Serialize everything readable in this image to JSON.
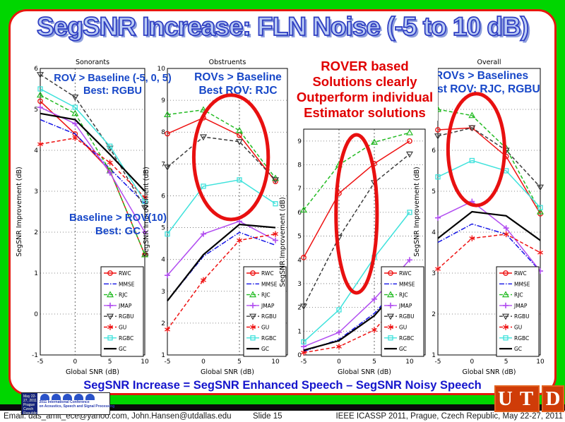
{
  "title": "SegSNR Increase: FLN Noise (-5 to 10 dB)",
  "annotations": {
    "p1_top": [
      "ROV > Baseline (-5, 0, 5)",
      "Best: RGBU"
    ],
    "p1_bottom": [
      "Baseline > ROV(10)",
      "Best: GC"
    ],
    "p2": [
      "ROVs > Baseline",
      "Best ROV: RJC"
    ],
    "p4": [
      "ROVs > Baselines",
      "Best ROV: RJC, RGBU"
    ],
    "red": [
      "ROVER based",
      "Solutions clearly",
      "Outperform individual",
      "Estimator solutions"
    ],
    "formula": "SegSNR Increase = SegSNR Enhanced Speech – SegSNR Noisy Speech"
  },
  "footer": {
    "email": "Email: das_amit_ece@yahoo.com, John.Hansen@utdallas.edu",
    "slide_number": "Slide 15",
    "conference": "IEEE ICASSP 2011, Prague, Czech Republic, May 22-27, 2011"
  },
  "logos": {
    "icassp_left": [
      "May 22-27, 2011",
      "Prague",
      "Czech Republic"
    ],
    "icassp_right": [
      "2011 International Conference",
      "on Acoustics, Speech and Signal Processing"
    ],
    "utd_u": "U",
    "utd_t": "T",
    "utd_d": "D"
  },
  "colors": {
    "background_green": "#00d600",
    "slide_border_red": "#e6180e",
    "annotation_blue": "#1747c8",
    "annotation_red": "#e00000",
    "title_fill": "#bccdf4",
    "title_stroke": "#2f3ec2"
  },
  "series_styles": {
    "RWC": {
      "color": "#ee1111",
      "dash": "none",
      "marker": "circle"
    },
    "MMSE": {
      "color": "#1414e6",
      "dash": "dashdot",
      "marker": "none"
    },
    "RJC": {
      "color": "#23bb23",
      "dash": "dash",
      "marker": "triangle-up"
    },
    "JMAP": {
      "color": "#b14df0",
      "dash": "none",
      "marker": "plus"
    },
    "RGBU": {
      "color": "#3c3c3c",
      "dash": "dash",
      "marker": "triangle-down"
    },
    "GU": {
      "color": "#ee1111",
      "dash": "dash",
      "marker": "star"
    },
    "RGBC": {
      "color": "#3fe2dc",
      "dash": "none",
      "marker": "square"
    },
    "GC": {
      "color": "#000000",
      "dash": "none",
      "marker": "none",
      "width": 2.2
    }
  },
  "chart_data": [
    {
      "type": "line",
      "title": "Sonorants",
      "xlabel": "Global SNR (dB)",
      "ylabel": "SegSNR Improvement (dB)",
      "x": [
        -5,
        0,
        5,
        10
      ],
      "xticks": [
        -5,
        0,
        5,
        10
      ],
      "ylim": [
        -1,
        6
      ],
      "yticks": [
        6,
        5,
        4,
        3,
        2,
        1,
        0,
        -1
      ],
      "vlines": [
        0
      ],
      "series": [
        {
          "name": "RWC",
          "values": [
            5.2,
            4.4,
            3.5,
            1.45
          ]
        },
        {
          "name": "MMSE",
          "values": [
            4.75,
            4.4,
            3.55,
            2.7
          ]
        },
        {
          "name": "RJC",
          "values": [
            5.35,
            4.9,
            3.5,
            1.45
          ]
        },
        {
          "name": "JMAP",
          "values": [
            5.05,
            4.65,
            3.45,
            2.0
          ]
        },
        {
          "name": "RGBU",
          "values": [
            5.85,
            5.3,
            4.05,
            2.6
          ]
        },
        {
          "name": "GU",
          "values": [
            4.15,
            4.3,
            3.7,
            2.85
          ]
        },
        {
          "name": "RGBC",
          "values": [
            5.5,
            5.05,
            4.1,
            2.75
          ]
        },
        {
          "name": "GC",
          "values": [
            4.9,
            4.75,
            3.9,
            3.0
          ]
        }
      ]
    },
    {
      "type": "line",
      "title": "Obstruents",
      "xlabel": "Global SNR (dB)",
      "ylabel": "SegSNR Improvement (dB)",
      "x": [
        -5,
        0,
        5,
        10
      ],
      "xticks": [
        -5,
        0,
        5,
        10
      ],
      "ylim": [
        1,
        10
      ],
      "yticks": [
        10,
        9,
        8,
        7,
        6,
        5,
        4,
        3,
        2,
        1
      ],
      "vlines": [
        5
      ],
      "highlight_ellipse": {
        "fx": 0.53,
        "fy": 0.31,
        "frx": 0.31,
        "fry": 0.217
      },
      "series": [
        {
          "name": "RWC",
          "values": [
            7.95,
            8.45,
            7.9,
            6.45
          ]
        },
        {
          "name": "MMSE",
          "values": [
            2.7,
            4.1,
            4.85,
            4.45
          ]
        },
        {
          "name": "RJC",
          "values": [
            8.55,
            8.7,
            8.05,
            6.55
          ]
        },
        {
          "name": "JMAP",
          "values": [
            3.5,
            4.8,
            5.2,
            4.6
          ]
        },
        {
          "name": "RGBU",
          "values": [
            6.9,
            7.85,
            7.7,
            6.5
          ]
        },
        {
          "name": "GU",
          "values": [
            1.8,
            3.35,
            4.6,
            4.8
          ]
        },
        {
          "name": "RGBC",
          "values": [
            4.8,
            6.3,
            6.5,
            5.75
          ]
        },
        {
          "name": "GC",
          "values": [
            2.7,
            4.15,
            5.1,
            5.0
          ]
        }
      ]
    },
    {
      "type": "line",
      "title": "",
      "xlabel": "Global SNR (dB)",
      "ylabel": "SegSNR Improvement (dB)",
      "x": [
        -5,
        0,
        5,
        10
      ],
      "xticks": [
        -5,
        0,
        5,
        10
      ],
      "ylim": [
        0,
        9.5
      ],
      "yticks": [
        9,
        8,
        7,
        6,
        5,
        4,
        3,
        2,
        1,
        0
      ],
      "vlines": [
        0,
        5
      ],
      "highlight_ellipse": {
        "fx": 0.435,
        "fy": 0.375,
        "frx": 0.169,
        "fry": 0.35
      },
      "series": [
        {
          "name": "RWC",
          "values": [
            4.1,
            6.8,
            8.05,
            9.0
          ]
        },
        {
          "name": "MMSE",
          "values": [
            0.15,
            0.65,
            1.75,
            3.4
          ]
        },
        {
          "name": "RJC",
          "values": [
            6.1,
            8.0,
            8.95,
            9.35
          ]
        },
        {
          "name": "JMAP",
          "values": [
            0.35,
            0.95,
            2.35,
            4.0
          ]
        },
        {
          "name": "RGBU",
          "values": [
            2.05,
            4.95,
            7.25,
            8.45
          ]
        },
        {
          "name": "GU",
          "values": [
            0.1,
            0.35,
            1.05,
            2.7
          ]
        },
        {
          "name": "RGBC",
          "values": [
            0.55,
            1.9,
            4.1,
            6.0
          ]
        },
        {
          "name": "GC",
          "values": [
            0.2,
            0.6,
            1.65,
            3.35
          ]
        }
      ]
    },
    {
      "type": "line",
      "title": "Overall",
      "xlabel": "Global SNR (dB)",
      "ylabel": "SegSNR Improvement (dB)",
      "x": [
        -5,
        0,
        5,
        10
      ],
      "xticks": [
        -5,
        0,
        5,
        10
      ],
      "ylim": [
        1,
        8
      ],
      "yticks": [
        7,
        6,
        5,
        4,
        3,
        2,
        1
      ],
      "vlines": [],
      "highlight_ellipse": {
        "fx": 0.375,
        "fy": 0.283,
        "frx": 0.276,
        "fry": 0.195
      },
      "series": [
        {
          "name": "RWC",
          "values": [
            6.5,
            6.55,
            5.85,
            4.45
          ]
        },
        {
          "name": "MMSE",
          "values": [
            3.75,
            4.2,
            3.95,
            3.05
          ]
        },
        {
          "name": "RJC",
          "values": [
            7.0,
            6.85,
            6.05,
            4.5
          ]
        },
        {
          "name": "JMAP",
          "values": [
            4.35,
            4.75,
            4.1,
            3.05
          ]
        },
        {
          "name": "RGBU",
          "values": [
            6.35,
            6.55,
            6.0,
            5.1
          ]
        },
        {
          "name": "GU",
          "values": [
            3.1,
            3.85,
            3.95,
            3.5
          ]
        },
        {
          "name": "RGBC",
          "values": [
            5.35,
            5.75,
            5.5,
            4.6
          ]
        },
        {
          "name": "GC",
          "values": [
            3.85,
            4.5,
            4.4,
            3.8
          ]
        }
      ]
    }
  ]
}
